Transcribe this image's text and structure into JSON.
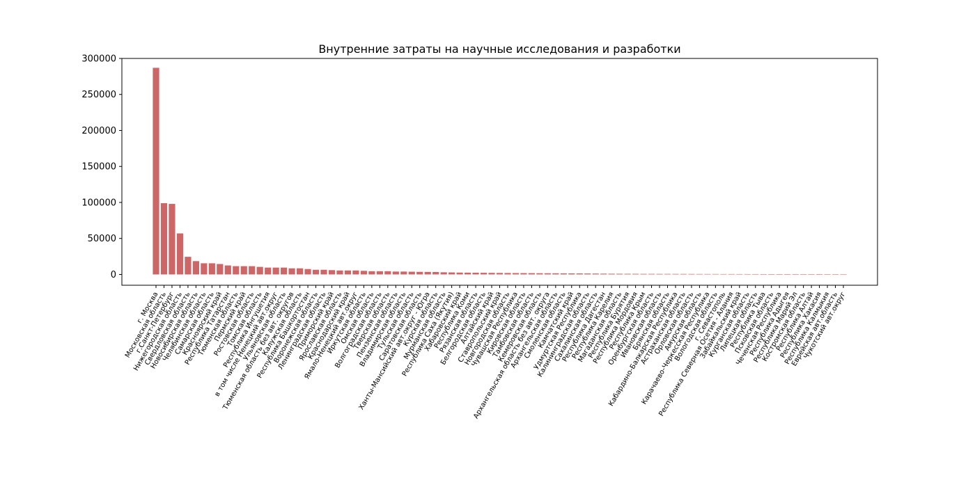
{
  "chart_data": {
    "type": "bar",
    "title": "Внутренние затраты на научные исследования и разработки",
    "xlabel": "",
    "ylabel": "",
    "ylim": [
      -15000,
      300000
    ],
    "yticks": [
      0,
      50000,
      100000,
      150000,
      200000,
      250000,
      300000
    ],
    "ytick_labels": [
      "0",
      "50000",
      "100000",
      "150000",
      "200000",
      "250000",
      "300000"
    ],
    "bar_color": "#cd6767",
    "grid": false,
    "categories": [
      "г. Москва",
      "Московская область",
      "г.Санкт-Петербург",
      "Нижегородская область",
      "Свердловская область",
      "Новосибирская область",
      "Челябинская область",
      "Самарская область",
      "Красноярский край",
      "Республика Татарстан",
      "Тюменская область",
      "Пермский край",
      "Ростовская область",
      "Томская область",
      "Республика Ингушетия",
      "в том числе Ненецкий авт.округ",
      "Ульяновская область",
      "Тюменская область без авт. округов",
      "Калужская область",
      "Республика Башкортостан",
      "Воронежская область",
      "Ленинградская область",
      "Приморский край",
      "Ярославская область",
      "Краснодарский край",
      "Ямало-Ненецкий авт.округ",
      "Иркутская область",
      "Омская область",
      "Волгоградская область",
      "Тверская область",
      "Пензенская область",
      "Владимирская область",
      "Тульская область",
      "Саратовская область",
      "Ханты-Мансийский авт.округ - Югра",
      "Курская область",
      "Мурманская область",
      "Республика Саха (Якутия)",
      "Хабаровский край",
      "Республика Коми",
      "Рязанская область",
      "Белгородская область",
      "Алтайский край",
      "Ставропольский край",
      "Новгородская область",
      "Чувашская Республика",
      "Кировская область",
      "Тамбовская область",
      "Кемеровская область",
      "Архангельская область без авт. округа",
      "Архангельская область",
      "Смоленская область",
      "Камчатский край",
      "Удмуртская Республика",
      "Калининградская область",
      "Сахалинская область",
      "Республика Дагестан",
      "Республика Карелия",
      "Магаданская область",
      "Республика Бурятия",
      "Республика Мордовия",
      "Республика Крым",
      "Оренбургская область",
      "Ивановская область",
      "Брянская область",
      "Кабардино-Балкарская Республика",
      "Астраханская область",
      "Орловская область",
      "Амурская область",
      "Карачаево-Черкесская Республика",
      "Вологодская область",
      "г. Севастополь",
      "Республика Северная Осетия - Алания",
      "Забайкальский край",
      "Курганская область",
      "Липецкая область",
      "Республика Тыва",
      "Псковская область",
      "Чеченская Республика",
      "Республика Адыгея",
      "Республика Марий Эл",
      "Костромская область",
      "Республика Алтай",
      "Республика Хакасия",
      "Республика Калмыкия",
      "Еврейская авт.область",
      "Чукотский авт.округ"
    ],
    "values": [
      287000,
      99000,
      98000,
      57000,
      24500,
      18500,
      15500,
      15500,
      14500,
      12500,
      11500,
      11500,
      11500,
      10500,
      9500,
      9500,
      9500,
      8500,
      8500,
      7500,
      6500,
      6500,
      6000,
      5500,
      5500,
      5500,
      5000,
      4500,
      4500,
      4500,
      4000,
      4000,
      3800,
      3600,
      3500,
      3400,
      3000,
      2800,
      2600,
      2500,
      2400,
      2300,
      2200,
      2100,
      2000,
      1900,
      1850,
      1800,
      1700,
      1650,
      1600,
      1500,
      1450,
      1400,
      1300,
      1200,
      1100,
      1000,
      950,
      900,
      850,
      800,
      780,
      760,
      740,
      720,
      700,
      680,
      650,
      620,
      600,
      580,
      560,
      540,
      520,
      500,
      480,
      450,
      420,
      400,
      200,
      150,
      100,
      80,
      60,
      40,
      30
    ]
  }
}
